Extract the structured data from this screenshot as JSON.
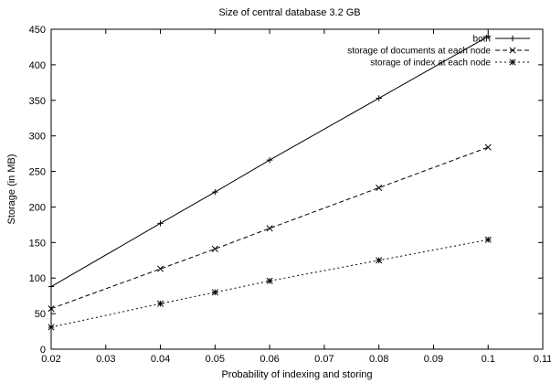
{
  "chart_data": {
    "type": "line",
    "title": "Size of central database 3.2 GB",
    "xlabel": "Probability of indexing and storing",
    "ylabel": "Storage (in MB)",
    "xlim": [
      0.02,
      0.11
    ],
    "ylim": [
      0,
      450
    ],
    "x_ticks": [
      "0.02",
      "0.03",
      "0.04",
      "0.05",
      "0.06",
      "0.07",
      "0.08",
      "0.09",
      "0.1",
      "0.11"
    ],
    "y_ticks": [
      "0",
      "50",
      "100",
      "150",
      "200",
      "250",
      "300",
      "350",
      "400",
      "450"
    ],
    "grid": false,
    "legend_position": "top-right",
    "series": [
      {
        "name": "both",
        "line_style": "solid",
        "marker": "plus",
        "x": [
          0.02,
          0.04,
          0.05,
          0.06,
          0.08,
          0.1
        ],
        "y": [
          88,
          177,
          221,
          266,
          353,
          440
        ]
      },
      {
        "name": "storage of documents at each node",
        "line_style": "dashed",
        "marker": "cross",
        "x": [
          0.02,
          0.04,
          0.05,
          0.06,
          0.08,
          0.1
        ],
        "y": [
          57,
          113,
          141,
          170,
          227,
          284
        ]
      },
      {
        "name": "storage of index at each node",
        "line_style": "dotted",
        "marker": "star",
        "x": [
          0.02,
          0.04,
          0.05,
          0.06,
          0.08,
          0.1
        ],
        "y": [
          31,
          64,
          80,
          96,
          125,
          154
        ]
      }
    ]
  }
}
